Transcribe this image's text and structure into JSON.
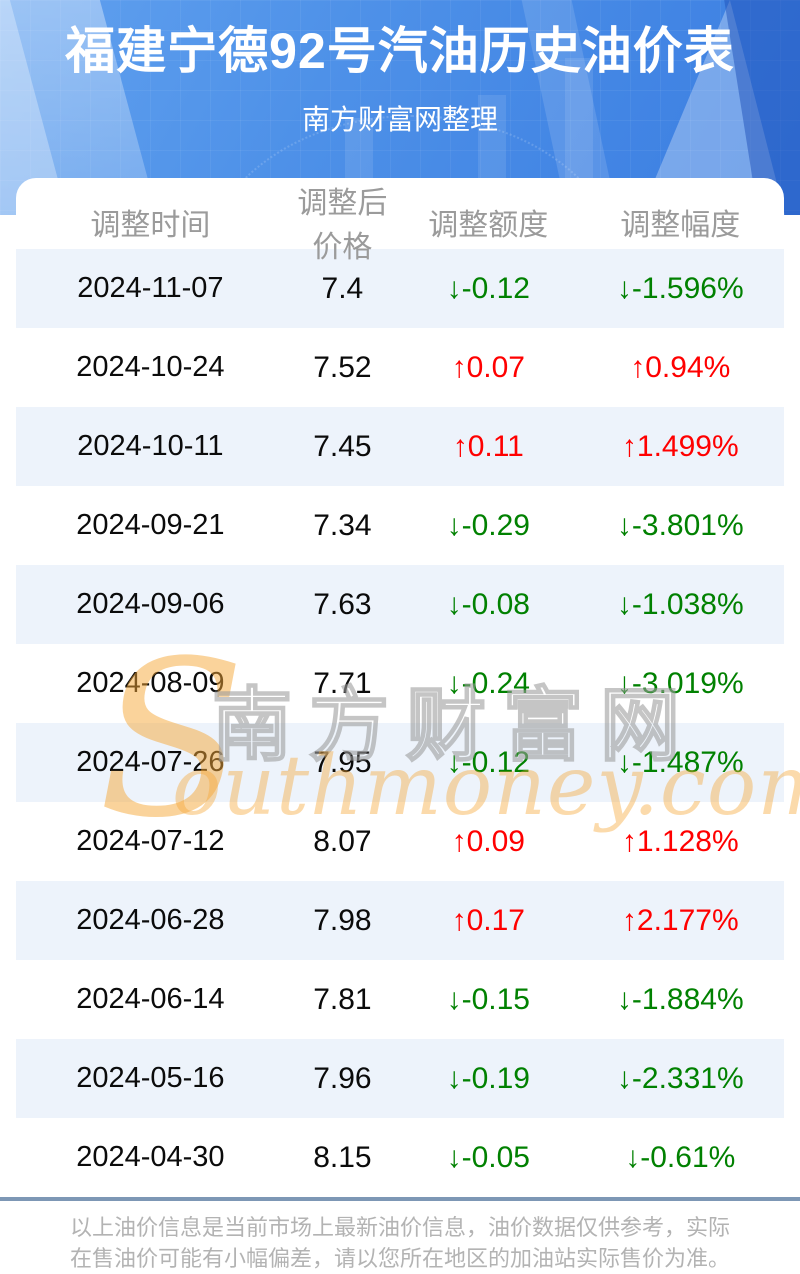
{
  "header": {
    "title": "福建宁德92号汽油历史油价表",
    "subtitle": "南方财富网整理"
  },
  "table": {
    "columns": [
      "调整时间",
      "调整后价格",
      "调整额度",
      "调整幅度"
    ],
    "rows": [
      {
        "date": "2024-11-07",
        "price": "7.4",
        "change": "↓-0.12",
        "percent": "↓-1.596%",
        "trend": "down"
      },
      {
        "date": "2024-10-24",
        "price": "7.52",
        "change": "↑0.07",
        "percent": "↑0.94%",
        "trend": "up"
      },
      {
        "date": "2024-10-11",
        "price": "7.45",
        "change": "↑0.11",
        "percent": "↑1.499%",
        "trend": "up"
      },
      {
        "date": "2024-09-21",
        "price": "7.34",
        "change": "↓-0.29",
        "percent": "↓-3.801%",
        "trend": "down"
      },
      {
        "date": "2024-09-06",
        "price": "7.63",
        "change": "↓-0.08",
        "percent": "↓-1.038%",
        "trend": "down"
      },
      {
        "date": "2024-08-09",
        "price": "7.71",
        "change": "↓-0.24",
        "percent": "↓-3.019%",
        "trend": "down"
      },
      {
        "date": "2024-07-26",
        "price": "7.95",
        "change": "↓-0.12",
        "percent": "↓-1.487%",
        "trend": "down"
      },
      {
        "date": "2024-07-12",
        "price": "8.07",
        "change": "↑0.09",
        "percent": "↑1.128%",
        "trend": "up"
      },
      {
        "date": "2024-06-28",
        "price": "7.98",
        "change": "↑0.17",
        "percent": "↑2.177%",
        "trend": "up"
      },
      {
        "date": "2024-06-14",
        "price": "7.81",
        "change": "↓-0.15",
        "percent": "↓-1.884%",
        "trend": "down"
      },
      {
        "date": "2024-05-16",
        "price": "7.96",
        "change": "↓-0.19",
        "percent": "↓-2.331%",
        "trend": "down"
      },
      {
        "date": "2024-04-30",
        "price": "8.15",
        "change": "↓-0.05",
        "percent": "↓-0.61%",
        "trend": "down"
      }
    ]
  },
  "watermark": {
    "s": "S",
    "cn": "南方财富网",
    "en": "outhmoney.com"
  },
  "footer": {
    "line1": "以上油价信息是当前市场上最新油价信息，油价数据仅供参考，实际",
    "line2": "在售油价可能有小幅偏差，请以您所在地区的加油站实际售价为准。"
  },
  "colors": {
    "up_red": "#ff0000",
    "down_green": "#018101",
    "row_alt_bg": "#edf3fb",
    "banner_blue": "#4285e4",
    "divider": "#7d97b5",
    "header_text": "#9b9b9b",
    "footer_text": "#b3b3b3",
    "watermark_orange": "#f6a738"
  }
}
